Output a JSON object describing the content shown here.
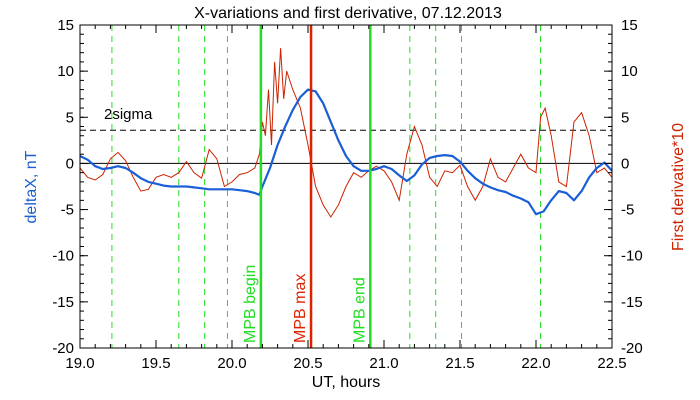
{
  "chart_data": {
    "type": "line",
    "title": "X-variations and first derivative, 07.12.2013",
    "xlabel": "UT, hours",
    "ylabel_left": "deltaX, nT",
    "ylabel_right": "First derivative*10",
    "xlim": [
      19.0,
      22.5
    ],
    "ylim": [
      -20,
      15
    ],
    "x_ticks": [
      "19.0",
      "19.5",
      "20.0",
      "20.5",
      "21.0",
      "21.5",
      "22.0",
      "22.5"
    ],
    "y_ticks": [
      "15",
      "10",
      "5",
      "0",
      "-5",
      "-10",
      "-15",
      "-20"
    ],
    "sigma_label": "2sigma",
    "sigma_level": 3.6,
    "colors": {
      "deltaX": "#1a5fd6",
      "derivative": "#cc2200",
      "markers": "#22dd22",
      "max_marker": "#dd2200"
    },
    "markers": [
      {
        "label": "MPB begin",
        "x": 20.19,
        "color": "#22dd22"
      },
      {
        "label": "MPB max",
        "x": 20.52,
        "color": "#dd2200"
      },
      {
        "label": "MPB end",
        "x": 20.91,
        "color": "#22dd22"
      }
    ],
    "dashed_lines_x": [
      19.21,
      19.65,
      19.82,
      19.97,
      21.17,
      21.34,
      21.51,
      22.03
    ],
    "series": [
      {
        "name": "deltaX",
        "axis": "left",
        "x": [
          19.0,
          19.05,
          19.1,
          19.15,
          19.2,
          19.25,
          19.3,
          19.35,
          19.4,
          19.45,
          19.5,
          19.55,
          19.6,
          19.65,
          19.7,
          19.75,
          19.8,
          19.85,
          19.9,
          19.95,
          20.0,
          20.05,
          20.1,
          20.15,
          20.18,
          20.2,
          20.25,
          20.3,
          20.35,
          20.4,
          20.45,
          20.5,
          20.55,
          20.6,
          20.65,
          20.7,
          20.75,
          20.8,
          20.85,
          20.9,
          20.95,
          21.0,
          21.05,
          21.1,
          21.15,
          21.2,
          21.25,
          21.3,
          21.35,
          21.4,
          21.45,
          21.5,
          21.55,
          21.6,
          21.65,
          21.7,
          21.75,
          21.8,
          21.85,
          21.9,
          21.95,
          22.0,
          22.05,
          22.1,
          22.15,
          22.2,
          22.25,
          22.3,
          22.35,
          22.4,
          22.45,
          22.5
        ],
        "values": [
          0.8,
          0.4,
          -0.3,
          -0.6,
          -0.5,
          -0.3,
          -0.5,
          -1.0,
          -1.6,
          -2.0,
          -2.2,
          -2.4,
          -2.5,
          -2.5,
          -2.5,
          -2.6,
          -2.7,
          -2.8,
          -2.8,
          -2.8,
          -2.8,
          -2.9,
          -3.0,
          -3.2,
          -3.4,
          -2.5,
          -0.5,
          2.0,
          4.0,
          5.8,
          7.2,
          8.0,
          7.8,
          6.5,
          4.5,
          2.5,
          0.8,
          -0.3,
          -0.8,
          -0.8,
          -0.6,
          -0.3,
          -0.6,
          -1.3,
          -1.9,
          -1.3,
          -0.1,
          0.6,
          0.8,
          0.9,
          0.8,
          0.2,
          -0.8,
          -1.6,
          -2.2,
          -2.6,
          -2.9,
          -3.1,
          -3.5,
          -3.8,
          -4.2,
          -5.5,
          -5.2,
          -4.0,
          -3.0,
          -3.2,
          -4.0,
          -3.0,
          -1.5,
          -0.5,
          0.1,
          -0.8
        ]
      },
      {
        "name": "First derivative*10",
        "axis": "right",
        "x": [
          19.0,
          19.05,
          19.1,
          19.15,
          19.2,
          19.25,
          19.3,
          19.35,
          19.4,
          19.45,
          19.5,
          19.55,
          19.6,
          19.65,
          19.7,
          19.75,
          19.8,
          19.85,
          19.9,
          19.95,
          20.0,
          20.05,
          20.1,
          20.15,
          20.18,
          20.2,
          20.22,
          20.24,
          20.26,
          20.28,
          20.3,
          20.32,
          20.34,
          20.36,
          20.4,
          20.45,
          20.5,
          20.55,
          20.6,
          20.65,
          20.7,
          20.75,
          20.8,
          20.85,
          20.9,
          20.95,
          21.0,
          21.05,
          21.1,
          21.15,
          21.2,
          21.25,
          21.3,
          21.35,
          21.4,
          21.45,
          21.5,
          21.55,
          21.6,
          21.65,
          21.7,
          21.75,
          21.8,
          21.85,
          21.9,
          21.95,
          22.0,
          22.03,
          22.06,
          22.1,
          22.15,
          22.2,
          22.25,
          22.3,
          22.35,
          22.4,
          22.45,
          22.5
        ],
        "values": [
          -0.5,
          -1.5,
          -1.8,
          -1.2,
          0.5,
          1.2,
          0.3,
          -1.5,
          -3.0,
          -2.8,
          -1.5,
          -1.2,
          -1.5,
          -1.0,
          0.2,
          -1.0,
          -1.6,
          1.5,
          0.5,
          -2.5,
          -2.0,
          -1.2,
          -1.0,
          -0.5,
          1.0,
          4.5,
          3.0,
          8.0,
          2.0,
          11.0,
          6.5,
          12.5,
          7.0,
          10.0,
          8.0,
          6.0,
          2.0,
          -2.5,
          -4.5,
          -5.8,
          -4.5,
          -2.5,
          -1.0,
          -1.5,
          -0.8,
          -0.3,
          -0.8,
          -2.0,
          -4.0,
          1.0,
          4.0,
          2.0,
          -1.5,
          -2.5,
          -0.8,
          -1.0,
          -0.2,
          -2.5,
          -4.0,
          -2.5,
          0.5,
          -1.5,
          -2.0,
          -0.5,
          1.0,
          -0.5,
          -1.0,
          5.0,
          6.0,
          3.0,
          -2.0,
          -2.5,
          4.5,
          5.5,
          3.0,
          -1.0,
          -0.5,
          -1.5
        ]
      }
    ]
  }
}
